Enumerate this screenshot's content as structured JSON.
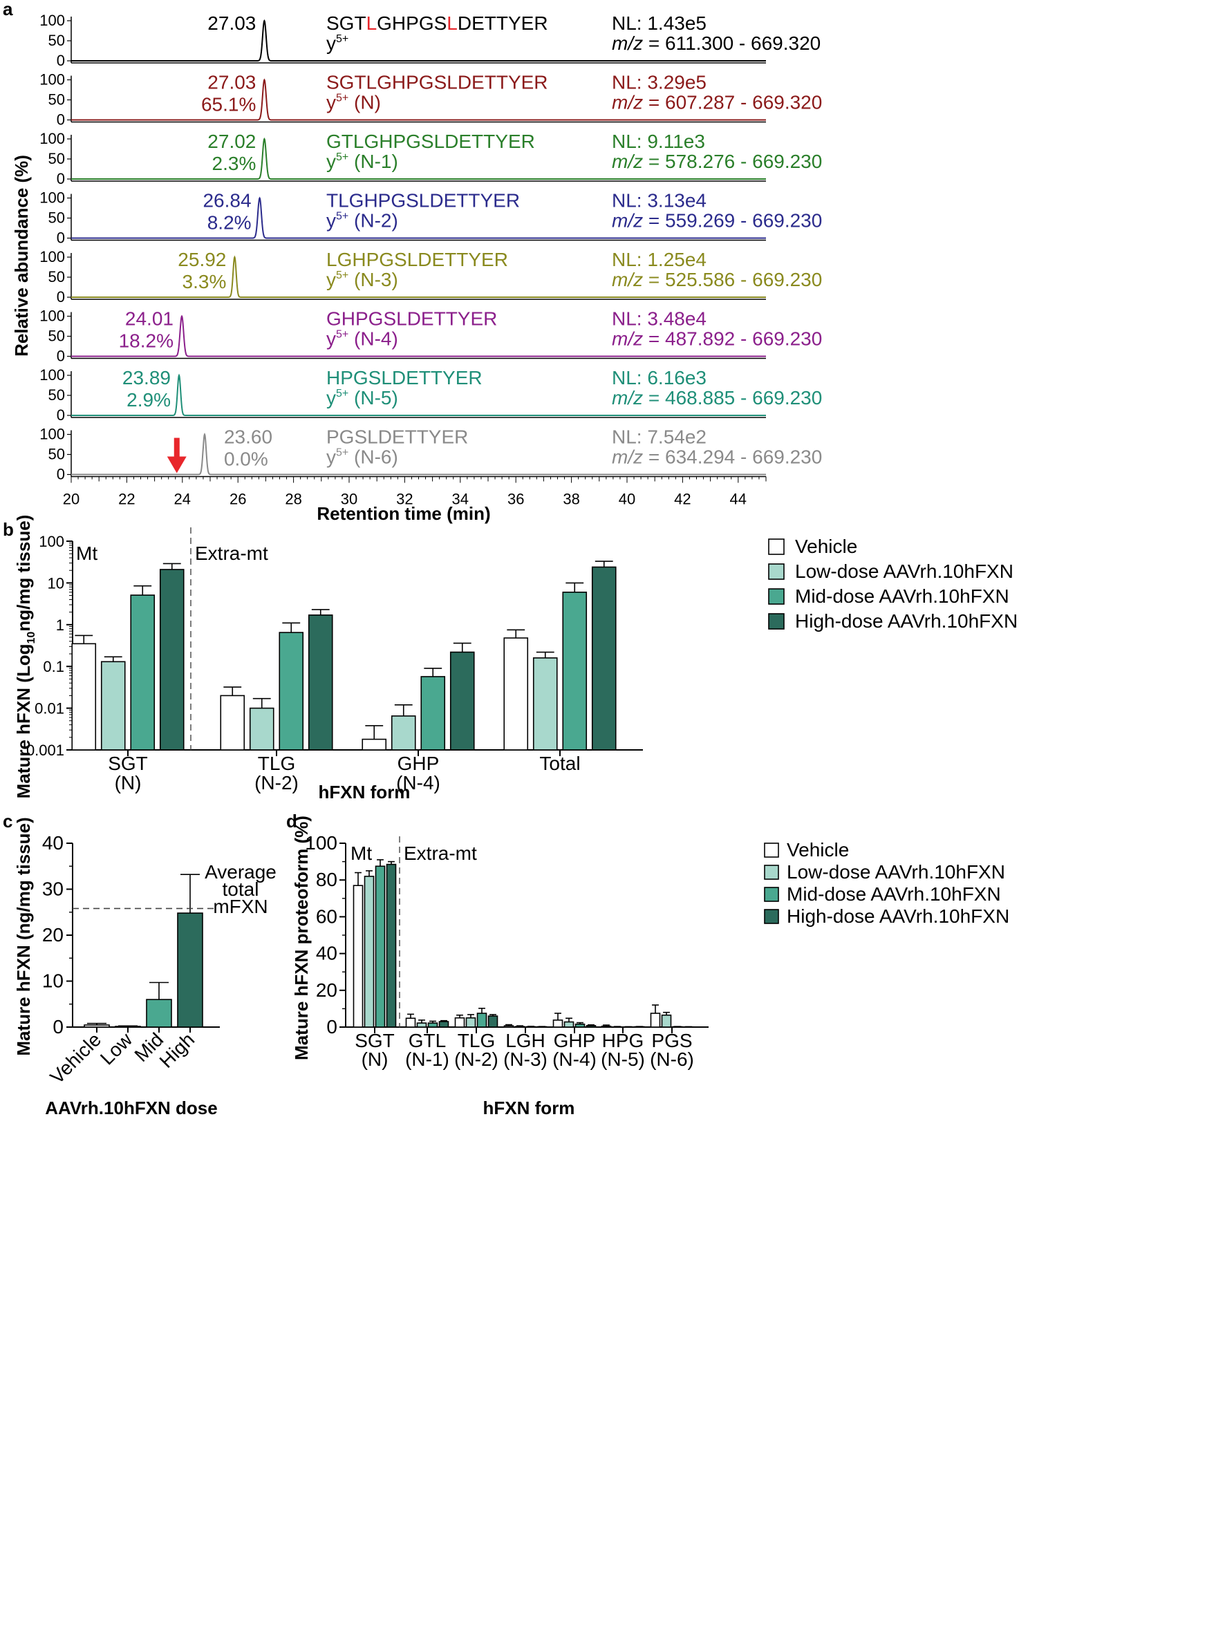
{
  "chart_data": [
    {
      "panel": "a",
      "type": "line",
      "xlabel": "Retention time (min)",
      "ylabel": "Relative abundance (%)",
      "xlim": [
        20,
        45
      ],
      "ylim": [
        0,
        100
      ],
      "xticks": [
        "20",
        "22",
        "24",
        "26",
        "28",
        "30",
        "32",
        "34",
        "36",
        "38",
        "40",
        "42",
        "44"
      ],
      "yticks": [
        "0",
        "50",
        "100"
      ],
      "traces": [
        {
          "name": "SGT (ref)",
          "color": "#000000",
          "rt_label": "27.03",
          "pct": "",
          "apex": 26.95,
          "width": 0.09,
          "seq": [
            {
              "t": "SGT",
              "c": "#000000"
            },
            {
              "t": "L",
              "c": "#e8262b"
            },
            {
              "t": "GHPGS",
              "c": "#000000"
            },
            {
              "t": "L",
              "c": "#e8262b"
            },
            {
              "t": "DETTYER",
              "c": "#000000"
            }
          ],
          "ion": "y",
          "ion_sup": "5+",
          "ion_suffix": "",
          "nl": "NL: 1.43e5",
          "mz_range": " = 611.300 - 669.320"
        },
        {
          "name": "N",
          "color": "#8b1a1a",
          "rt_label": "27.03",
          "pct": "65.1%",
          "apex": 26.95,
          "width": 0.09,
          "seq": [
            {
              "t": "SGTLGHPGSLDETTYER",
              "c": "#8b1a1a"
            }
          ],
          "ion": "y",
          "ion_sup": "5+",
          "ion_suffix": " (N)",
          "nl": "NL: 3.29e5",
          "mz_range": " = 607.287 - 669.320"
        },
        {
          "name": "N-1",
          "color": "#2a7f2a",
          "rt_label": "27.02",
          "pct": "2.3%",
          "apex": 26.95,
          "width": 0.09,
          "seq": [
            {
              "t": "GTLGHPGSLDETTYER",
              "c": "#2a7f2a"
            }
          ],
          "ion": "y",
          "ion_sup": "5+",
          "ion_suffix": " (N-1)",
          "nl": "NL: 9.11e3",
          "mz_range": " = 578.276 - 669.230"
        },
        {
          "name": "N-2",
          "color": "#2b2b8c",
          "rt_label": "26.84",
          "pct": "8.2%",
          "apex": 26.78,
          "width": 0.09,
          "seq": [
            {
              "t": "TLGHPGSLDETTYER",
              "c": "#2b2b8c"
            }
          ],
          "ion": "y",
          "ion_sup": "5+",
          "ion_suffix": " (N-2)",
          "nl": "NL: 3.13e4",
          "mz_range": " = 559.269 - 669.230"
        },
        {
          "name": "N-3",
          "color": "#8a8a1f",
          "rt_label": "25.92",
          "pct": "3.3%",
          "apex": 25.88,
          "width": 0.08,
          "seq": [
            {
              "t": "LGHPGSLDETTYER",
              "c": "#8a8a1f"
            }
          ],
          "ion": "y",
          "ion_sup": "5+",
          "ion_suffix": " (N-3)",
          "nl": "NL: 1.25e4",
          "mz_range": " = 525.586 - 669.230"
        },
        {
          "name": "N-4",
          "color": "#8b1f8b",
          "rt_label": "24.01",
          "pct": "18.2%",
          "apex": 23.98,
          "width": 0.09,
          "seq": [
            {
              "t": "GHPGSLDETTYER",
              "c": "#8b1f8b"
            }
          ],
          "ion": "y",
          "ion_sup": "5+",
          "ion_suffix": " (N-4)",
          "nl": "NL: 3.48e4",
          "mz_range": " = 487.892 - 669.230"
        },
        {
          "name": "N-5",
          "color": "#1f8f78",
          "rt_label": "23.89",
          "pct": "2.9%",
          "apex": 23.88,
          "width": 0.08,
          "seq": [
            {
              "t": "HPGSLDETTYER",
              "c": "#1f8f78"
            }
          ],
          "ion": "y",
          "ion_sup": "5+",
          "ion_suffix": " (N-5)",
          "nl": "NL: 6.16e3",
          "mz_range": " = 468.885 - 669.230"
        },
        {
          "name": "N-6",
          "color": "#8a8a8a",
          "rt_label": "23.60",
          "pct": "0.0%",
          "apex": 24.8,
          "width": 0.08,
          "seq": [
            {
              "t": "PGSLDETTYER",
              "c": "#8a8a8a"
            }
          ],
          "ion": "y",
          "ion_sup": "5+",
          "ion_suffix": " (N-6)",
          "nl": "NL: 7.54e2",
          "mz_range": " = 634.294 - 669.230",
          "arrow_at": 23.8
        }
      ],
      "mz_prefix": "m/z"
    },
    {
      "panel": "b",
      "type": "bar",
      "scale": "log",
      "ylabel": "Mature hFXN (Log",
      "ylabel_sub": "10",
      "ylabel_tail": "ng/mg tissue)",
      "xlabel": "hFXN form",
      "ylim": [
        0.001,
        100
      ],
      "yticks": [
        "0.001",
        "0.01",
        "0.1",
        "1",
        "10",
        "100"
      ],
      "region_labels": [
        "Mt",
        "Extra-mt"
      ],
      "categories": [
        [
          "SGT",
          "(N)"
        ],
        [
          "TLG",
          "(N-2)"
        ],
        [
          "GHP",
          "(N-4)"
        ],
        [
          "Total",
          ""
        ]
      ],
      "series": [
        {
          "name": "Vehicle",
          "color": "#ffffff",
          "values": [
            0.35,
            0.02,
            0.0018,
            0.48
          ],
          "errors": [
            0.55,
            0.032,
            0.0038,
            0.75
          ]
        },
        {
          "name": "Low-dose AAVrh.10hFXN",
          "color": "#a8d8cc",
          "values": [
            0.13,
            0.01,
            0.0065,
            0.16
          ],
          "errors": [
            0.17,
            0.017,
            0.012,
            0.22
          ]
        },
        {
          "name": "Mid-dose AAVrh.10hFXN",
          "color": "#4aa890",
          "values": [
            5.1,
            0.65,
            0.057,
            6.0
          ],
          "errors": [
            8.5,
            1.1,
            0.09,
            10
          ]
        },
        {
          "name": "High-dose AAVrh.10hFXN",
          "color": "#2c6b5c",
          "values": [
            21,
            1.7,
            0.22,
            24
          ],
          "errors": [
            29,
            2.3,
            0.36,
            33
          ]
        }
      ]
    },
    {
      "panel": "c",
      "type": "bar",
      "ylabel": "Mature hFXN (ng/mg tissue)",
      "xlabel": "AAVrh.10hFXN dose",
      "ylim": [
        0,
        40
      ],
      "yticks": [
        "0",
        "10",
        "20",
        "30",
        "40"
      ],
      "categories": [
        "Vehicle",
        "Low",
        "Mid",
        "High"
      ],
      "colors": [
        "#ffffff",
        "#a8d8cc",
        "#4aa890",
        "#2c6b5c"
      ],
      "values": [
        0.45,
        0.15,
        6.0,
        24.8
      ],
      "errors": [
        0.8,
        0.25,
        9.7,
        33.2
      ],
      "reference_line": {
        "value": 25.8,
        "label": [
          "Average",
          "total",
          "mFXN"
        ]
      }
    },
    {
      "panel": "d",
      "type": "bar",
      "ylabel": "Mature hFXN proteoform (%)",
      "xlabel": "hFXN  form",
      "ylim": [
        0,
        100
      ],
      "yticks": [
        "0",
        "20",
        "40",
        "60",
        "80",
        "100"
      ],
      "region_labels": [
        "Mt",
        "Extra-mt"
      ],
      "categories": [
        [
          "SGT",
          "(N)"
        ],
        [
          "GTL",
          "(N-1)"
        ],
        [
          "TLG",
          "(N-2)"
        ],
        [
          "LGH",
          "(N-3)"
        ],
        [
          "GHP",
          "(N-4)"
        ],
        [
          "HPG",
          "(N-5)"
        ],
        [
          "PGS",
          "(N-6)"
        ]
      ],
      "series": [
        {
          "name": "Vehicle",
          "color": "#ffffff",
          "values": [
            77,
            4.8,
            5.0,
            0.7,
            3.8,
            0.5,
            7.5
          ],
          "errors": [
            84,
            7.0,
            6.5,
            1.3,
            7.5,
            1.1,
            12
          ]
        },
        {
          "name": "Low-dose AAVrh.10hFXN",
          "color": "#a8d8cc",
          "values": [
            82,
            2.2,
            5.0,
            0.3,
            2.8,
            0.1,
            6.5
          ],
          "errors": [
            85,
            3.8,
            6.8,
            0.7,
            4.8,
            0.3,
            8.0
          ]
        },
        {
          "name": "Mid-dose AAVrh.10hFXN",
          "color": "#4aa890",
          "values": [
            87.5,
            2.2,
            7.5,
            0.2,
            1.6,
            0.1,
            0.2
          ],
          "errors": [
            91,
            3.2,
            10.2,
            0.4,
            2.4,
            0.2,
            0.3
          ]
        },
        {
          "name": "High-dose AAVrh.10hFXN",
          "color": "#2c6b5c",
          "values": [
            88.5,
            3.0,
            6.0,
            0.2,
            0.8,
            0.2,
            0.1
          ],
          "errors": [
            90,
            3.5,
            6.8,
            0.3,
            1.2,
            0.3,
            0.2
          ]
        }
      ]
    }
  ]
}
